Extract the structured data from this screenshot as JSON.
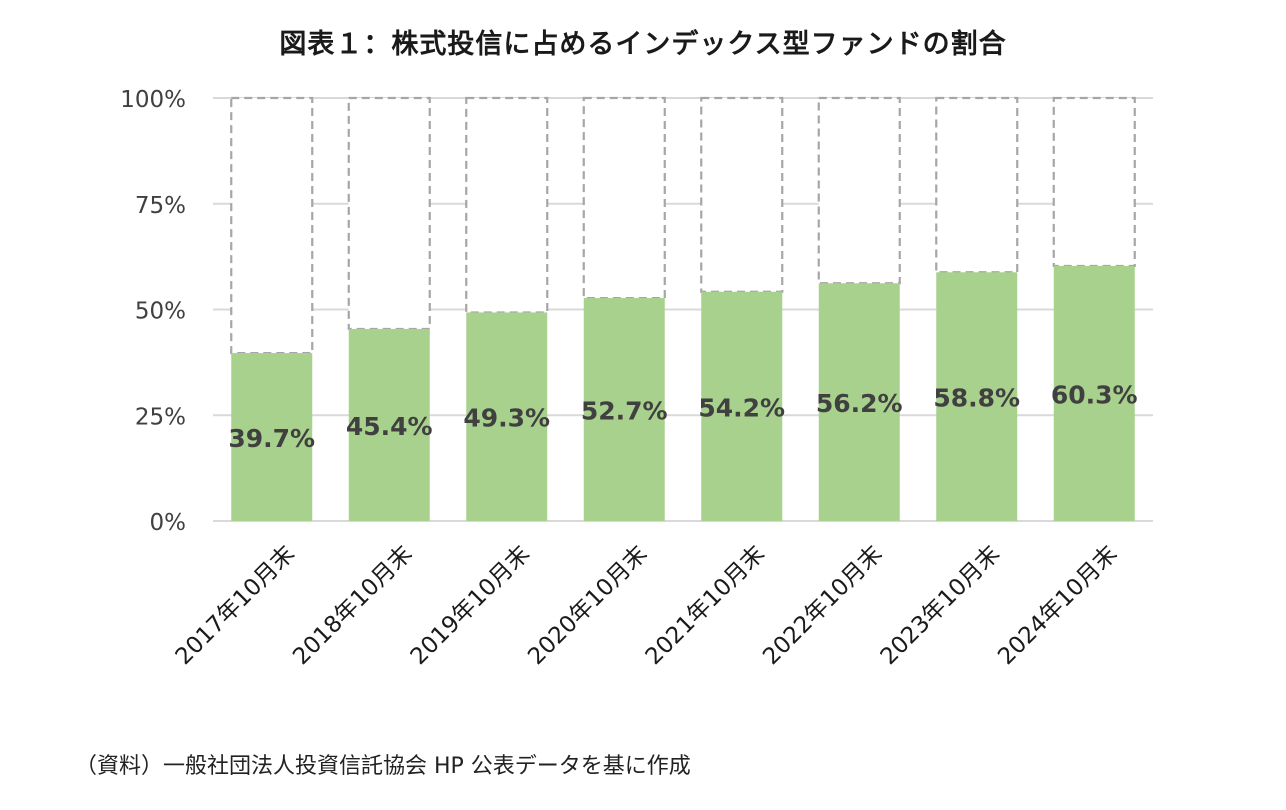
{
  "chart_data": {
    "type": "bar",
    "title": "図表１：株式投信に占めるインデックス型ファンドの割合",
    "categories": [
      "2017年10月末",
      "2018年10月末",
      "2019年10月末",
      "2020年10月末",
      "2021年10月末",
      "2022年10月末",
      "2023年10月末",
      "2024年10月末"
    ],
    "series": [
      {
        "values": [
          39.7,
          45.4,
          49.3,
          52.7,
          54.2,
          56.2,
          58.8,
          60.3
        ]
      }
    ],
    "data_labels": [
      "39.7%",
      "45.4%",
      "49.3%",
      "52.7%",
      "54.2%",
      "56.2%",
      "58.8%",
      "60.3%"
    ],
    "yticks": [
      0,
      25,
      50,
      75,
      100
    ],
    "ytick_labels": [
      "0%",
      "25%",
      "50%",
      "75%",
      "100%"
    ],
    "ylim": [
      0,
      100
    ],
    "stacked_remainder_outline": "dashed",
    "grid": true,
    "legend": "none",
    "colors": {
      "bar": "#a9d18e",
      "outline": "#a6a6a6",
      "grid": "#d9d9d9",
      "label": "#404040"
    },
    "source": "（資料）一般社団法人投資信託協会 HP 公表データを基に作成"
  }
}
